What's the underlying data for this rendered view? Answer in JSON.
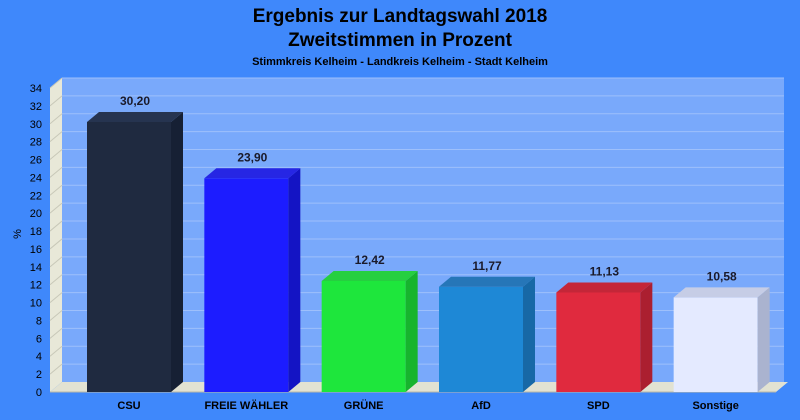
{
  "chart_data": {
    "type": "bar",
    "title_line1": "Ergebnis zur Landtagswahl 2018",
    "title_line2": "Zweitstimmen in Prozent",
    "subtitle": "Stimmkreis Kelheim - Landkreis Kelheim - Stadt Kelheim",
    "ylabel": "%",
    "xlabel": "",
    "ylim": [
      0,
      34
    ],
    "ytick_step": 2,
    "grid": true,
    "legend": "none",
    "categories": [
      "CSU",
      "FREIE WÄHLER",
      "GRÜNE",
      "AfD",
      "SPD",
      "Sonstige"
    ],
    "values": [
      30.2,
      23.9,
      12.42,
      11.77,
      11.13,
      10.58
    ],
    "value_labels": [
      "30,20",
      "23,90",
      "12,42",
      "11,77",
      "11,13",
      "10,58"
    ],
    "colors": [
      "#1f2a40",
      "#1c1cff",
      "#1ee63c",
      "#1e88d6",
      "#e02a3e",
      "#e4eaff"
    ],
    "side_colors": [
      "#162034",
      "#1414c4",
      "#17b42e",
      "#1768a6",
      "#ab1f30",
      "#aab3cf"
    ],
    "top_colors": [
      "#263450",
      "#2626e4",
      "#26cf40",
      "#2676b8",
      "#c42638",
      "#c6cde6"
    ]
  }
}
